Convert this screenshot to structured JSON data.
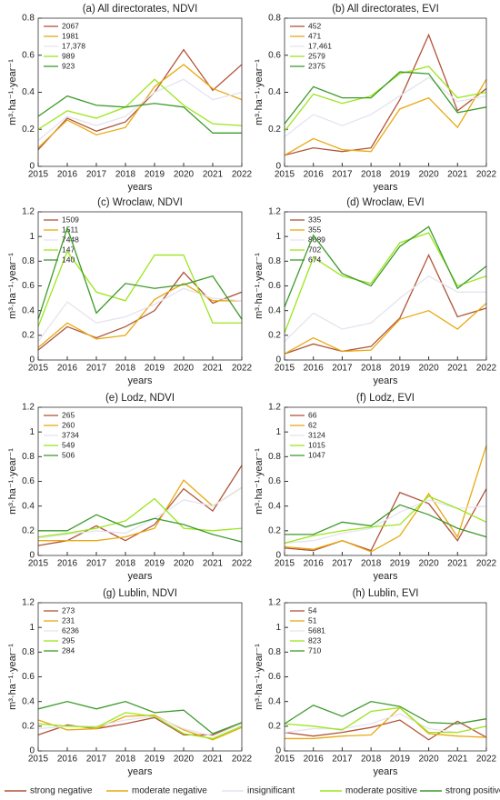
{
  "legend": [
    {
      "name": "strong negative",
      "color": "#b0553a"
    },
    {
      "name": "moderate negative",
      "color": "#e8a912"
    },
    {
      "name": "insignificant",
      "color": "#e4e4ee"
    },
    {
      "name": "moderate positive",
      "color": "#9be61c"
    },
    {
      "name": "strong positive",
      "color": "#3d9a2c"
    }
  ],
  "chart_data": [
    {
      "type": "line",
      "title": "(a) All directorates, NDVI",
      "xlabel": "years",
      "ylabel": "m³·ha⁻¹·year⁻¹",
      "x": [
        2015,
        2016,
        2017,
        2018,
        2019,
        2020,
        2021,
        2022
      ],
      "xlim": [
        2015,
        2022
      ],
      "xticks": [
        2015,
        2016,
        2017,
        2018,
        2019,
        2020,
        2021,
        2022
      ],
      "ylim": [
        0,
        0.8
      ],
      "yticks": [
        0,
        0.2,
        0.4,
        0.6,
        0.8
      ],
      "series": [
        {
          "name": "2067",
          "values": [
            0.09,
            0.26,
            0.19,
            0.24,
            0.4,
            0.63,
            0.41,
            0.55
          ]
        },
        {
          "name": "1981",
          "values": [
            0.1,
            0.25,
            0.17,
            0.21,
            0.43,
            0.55,
            0.42,
            0.36
          ]
        },
        {
          "name": "17,378",
          "values": [
            0.14,
            0.27,
            0.22,
            0.27,
            0.4,
            0.47,
            0.36,
            0.4
          ]
        },
        {
          "name": "989",
          "values": [
            0.2,
            0.3,
            0.26,
            0.32,
            0.47,
            0.33,
            0.23,
            0.22
          ]
        },
        {
          "name": "923",
          "values": [
            0.27,
            0.38,
            0.33,
            0.32,
            0.34,
            0.32,
            0.18,
            0.18
          ]
        }
      ]
    },
    {
      "type": "line",
      "title": "(b) All directorates, EVI",
      "xlabel": "years",
      "ylabel": "m³·ha⁻¹·year⁻¹",
      "x": [
        2015,
        2016,
        2017,
        2018,
        2019,
        2020,
        2021,
        2022
      ],
      "xlim": [
        2015,
        2022
      ],
      "xticks": [
        2015,
        2016,
        2017,
        2018,
        2019,
        2020,
        2021,
        2022
      ],
      "ylim": [
        0,
        0.8
      ],
      "yticks": [
        0,
        0.2,
        0.4,
        0.6,
        0.8
      ],
      "series": [
        {
          "name": "452",
          "values": [
            0.06,
            0.1,
            0.08,
            0.1,
            0.36,
            0.71,
            0.3,
            0.42
          ]
        },
        {
          "name": "471",
          "values": [
            0.06,
            0.15,
            0.09,
            0.08,
            0.31,
            0.37,
            0.21,
            0.47
          ]
        },
        {
          "name": "17,461",
          "values": [
            0.16,
            0.28,
            0.22,
            0.28,
            0.38,
            0.48,
            0.35,
            0.38
          ]
        },
        {
          "name": "2579",
          "values": [
            0.19,
            0.39,
            0.34,
            0.38,
            0.5,
            0.54,
            0.37,
            0.4
          ]
        },
        {
          "name": "2375",
          "values": [
            0.23,
            0.43,
            0.37,
            0.37,
            0.51,
            0.5,
            0.29,
            0.32
          ]
        }
      ]
    },
    {
      "type": "line",
      "title": "(c) Wroclaw, NDVI",
      "xlabel": "years",
      "ylabel": "m³·ha⁻¹·year⁻¹",
      "x": [
        2015,
        2016,
        2017,
        2018,
        2019,
        2020,
        2021,
        2022
      ],
      "xlim": [
        2015,
        2022
      ],
      "xticks": [
        2015,
        2016,
        2017,
        2018,
        2019,
        2020,
        2021,
        2022
      ],
      "ylim": [
        0,
        1.2
      ],
      "yticks": [
        0,
        0.2,
        0.4,
        0.6,
        0.8,
        1,
        1.2
      ],
      "series": [
        {
          "name": "1509",
          "values": [
            0.08,
            0.27,
            0.18,
            0.27,
            0.4,
            0.71,
            0.46,
            0.55
          ]
        },
        {
          "name": "1511",
          "values": [
            0.1,
            0.3,
            0.17,
            0.2,
            0.49,
            0.62,
            0.48,
            0.48
          ]
        },
        {
          "name": "7448",
          "values": [
            0.15,
            0.47,
            0.3,
            0.35,
            0.45,
            0.58,
            0.5,
            0.48
          ]
        },
        {
          "name": "147",
          "values": [
            0.27,
            0.88,
            0.55,
            0.48,
            0.85,
            0.85,
            0.3,
            0.3
          ]
        },
        {
          "name": "140",
          "values": [
            0.33,
            1.07,
            0.38,
            0.62,
            0.58,
            0.61,
            0.68,
            0.33
          ]
        }
      ]
    },
    {
      "type": "line",
      "title": "(d) Wroclaw, EVI",
      "xlabel": "years",
      "ylabel": "m³·ha⁻¹·year⁻¹",
      "x": [
        2015,
        2016,
        2017,
        2018,
        2019,
        2020,
        2021,
        2022
      ],
      "xlim": [
        2015,
        2022
      ],
      "xticks": [
        2015,
        2016,
        2017,
        2018,
        2019,
        2020,
        2021,
        2022
      ],
      "ylim": [
        0,
        1.2
      ],
      "yticks": [
        0,
        0.2,
        0.4,
        0.6,
        0.8,
        1,
        1.2
      ],
      "series": [
        {
          "name": "335",
          "values": [
            0.05,
            0.13,
            0.07,
            0.11,
            0.34,
            0.85,
            0.35,
            0.42
          ]
        },
        {
          "name": "355",
          "values": [
            0.05,
            0.18,
            0.07,
            0.08,
            0.33,
            0.4,
            0.25,
            0.46
          ]
        },
        {
          "name": "8689",
          "values": [
            0.15,
            0.38,
            0.25,
            0.3,
            0.5,
            0.68,
            0.55,
            0.55
          ]
        },
        {
          "name": "702",
          "values": [
            0.22,
            0.83,
            0.68,
            0.62,
            0.95,
            1.03,
            0.6,
            0.68
          ]
        },
        {
          "name": "674",
          "values": [
            0.43,
            1.01,
            0.7,
            0.6,
            0.92,
            1.08,
            0.58,
            0.76
          ]
        }
      ]
    },
    {
      "type": "line",
      "title": "(e) Lodz, NDVI",
      "xlabel": "years",
      "ylabel": "m³·ha⁻¹·year⁻¹",
      "x": [
        2015,
        2016,
        2017,
        2018,
        2019,
        2020,
        2021,
        2022
      ],
      "xlim": [
        2015,
        2022
      ],
      "xticks": [
        2015,
        2016,
        2017,
        2018,
        2019,
        2020,
        2021,
        2022
      ],
      "ylim": [
        0,
        1.2
      ],
      "yticks": [
        0,
        0.2,
        0.4,
        0.6,
        0.8,
        1,
        1.2
      ],
      "series": [
        {
          "name": "265",
          "values": [
            0.08,
            0.12,
            0.24,
            0.12,
            0.25,
            0.54,
            0.36,
            0.73
          ]
        },
        {
          "name": "260",
          "values": [
            0.12,
            0.12,
            0.12,
            0.15,
            0.22,
            0.61,
            0.4,
            0.55
          ]
        },
        {
          "name": "3734",
          "values": [
            0.14,
            0.17,
            0.2,
            0.18,
            0.3,
            0.45,
            0.4,
            0.55
          ]
        },
        {
          "name": "549",
          "values": [
            0.15,
            0.18,
            0.22,
            0.28,
            0.46,
            0.22,
            0.2,
            0.22
          ]
        },
        {
          "name": "506",
          "values": [
            0.2,
            0.2,
            0.33,
            0.23,
            0.3,
            0.25,
            0.17,
            0.11
          ]
        }
      ]
    },
    {
      "type": "line",
      "title": "(f) Lodz, EVI",
      "xlabel": "years",
      "ylabel": "m³·ha⁻¹·year⁻¹",
      "x": [
        2015,
        2016,
        2017,
        2018,
        2019,
        2020,
        2021,
        2022
      ],
      "xlim": [
        2015,
        2022
      ],
      "xticks": [
        2015,
        2016,
        2017,
        2018,
        2019,
        2020,
        2021,
        2022
      ],
      "ylim": [
        0,
        1.2
      ],
      "yticks": [
        0,
        0.2,
        0.4,
        0.6,
        0.8,
        1,
        1.2
      ],
      "series": [
        {
          "name": "66",
          "values": [
            0.06,
            0.04,
            0.12,
            0.04,
            0.51,
            0.42,
            0.12,
            0.54
          ]
        },
        {
          "name": "62",
          "values": [
            0.07,
            0.05,
            0.12,
            0.03,
            0.16,
            0.5,
            0.15,
            0.89
          ]
        },
        {
          "name": "3124",
          "values": [
            0.1,
            0.12,
            0.18,
            0.22,
            0.35,
            0.45,
            0.38,
            0.4
          ]
        },
        {
          "name": "1015",
          "values": [
            0.1,
            0.16,
            0.2,
            0.23,
            0.25,
            0.48,
            0.38,
            0.27
          ]
        },
        {
          "name": "1047",
          "values": [
            0.17,
            0.17,
            0.27,
            0.24,
            0.41,
            0.33,
            0.22,
            0.15
          ]
        }
      ]
    },
    {
      "type": "line",
      "title": "(g) Lublin, NDVI",
      "xlabel": "years",
      "ylabel": "m³·ha⁻¹·year⁻¹",
      "x": [
        2015,
        2016,
        2017,
        2018,
        2019,
        2020,
        2021,
        2022
      ],
      "xlim": [
        2015,
        2022
      ],
      "xticks": [
        2015,
        2016,
        2017,
        2018,
        2019,
        2020,
        2021,
        2022
      ],
      "ylim": [
        0,
        1.2
      ],
      "yticks": [
        0,
        0.2,
        0.4,
        0.6,
        0.8,
        1,
        1.2
      ],
      "series": [
        {
          "name": "273",
          "values": [
            0.13,
            0.21,
            0.18,
            0.22,
            0.27,
            0.13,
            0.13,
            0.22
          ]
        },
        {
          "name": "231",
          "values": [
            0.25,
            0.17,
            0.18,
            0.28,
            0.29,
            0.17,
            0.09,
            0.19
          ]
        },
        {
          "name": "6236",
          "values": [
            0.18,
            0.2,
            0.2,
            0.25,
            0.28,
            0.18,
            0.12,
            0.22
          ]
        },
        {
          "name": "295",
          "values": [
            0.22,
            0.2,
            0.19,
            0.31,
            0.28,
            0.14,
            0.1,
            0.2
          ]
        },
        {
          "name": "284",
          "values": [
            0.34,
            0.4,
            0.34,
            0.4,
            0.31,
            0.33,
            0.14,
            0.23
          ]
        }
      ]
    },
    {
      "type": "line",
      "title": "(h) Lublin, EVI",
      "xlabel": "years",
      "ylabel": "m³·ha⁻¹·year⁻¹",
      "x": [
        2015,
        2016,
        2017,
        2018,
        2019,
        2020,
        2021,
        2022
      ],
      "xlim": [
        2015,
        2022
      ],
      "xticks": [
        2015,
        2016,
        2017,
        2018,
        2019,
        2020,
        2021,
        2022
      ],
      "ylim": [
        0,
        1.2
      ],
      "yticks": [
        0,
        0.2,
        0.4,
        0.6,
        0.8,
        1,
        1.2
      ],
      "series": [
        {
          "name": "54",
          "values": [
            0.15,
            0.12,
            0.15,
            0.19,
            0.25,
            0.09,
            0.24,
            0.11
          ]
        },
        {
          "name": "51",
          "values": [
            0.1,
            0.1,
            0.12,
            0.13,
            0.35,
            0.14,
            0.12,
            0.11
          ]
        },
        {
          "name": "5681",
          "values": [
            0.15,
            0.18,
            0.18,
            0.22,
            0.3,
            0.18,
            0.15,
            0.2
          ]
        },
        {
          "name": "823",
          "values": [
            0.22,
            0.2,
            0.17,
            0.32,
            0.35,
            0.15,
            0.15,
            0.2
          ]
        },
        {
          "name": "710",
          "values": [
            0.22,
            0.37,
            0.28,
            0.4,
            0.36,
            0.23,
            0.22,
            0.26
          ]
        }
      ]
    }
  ]
}
